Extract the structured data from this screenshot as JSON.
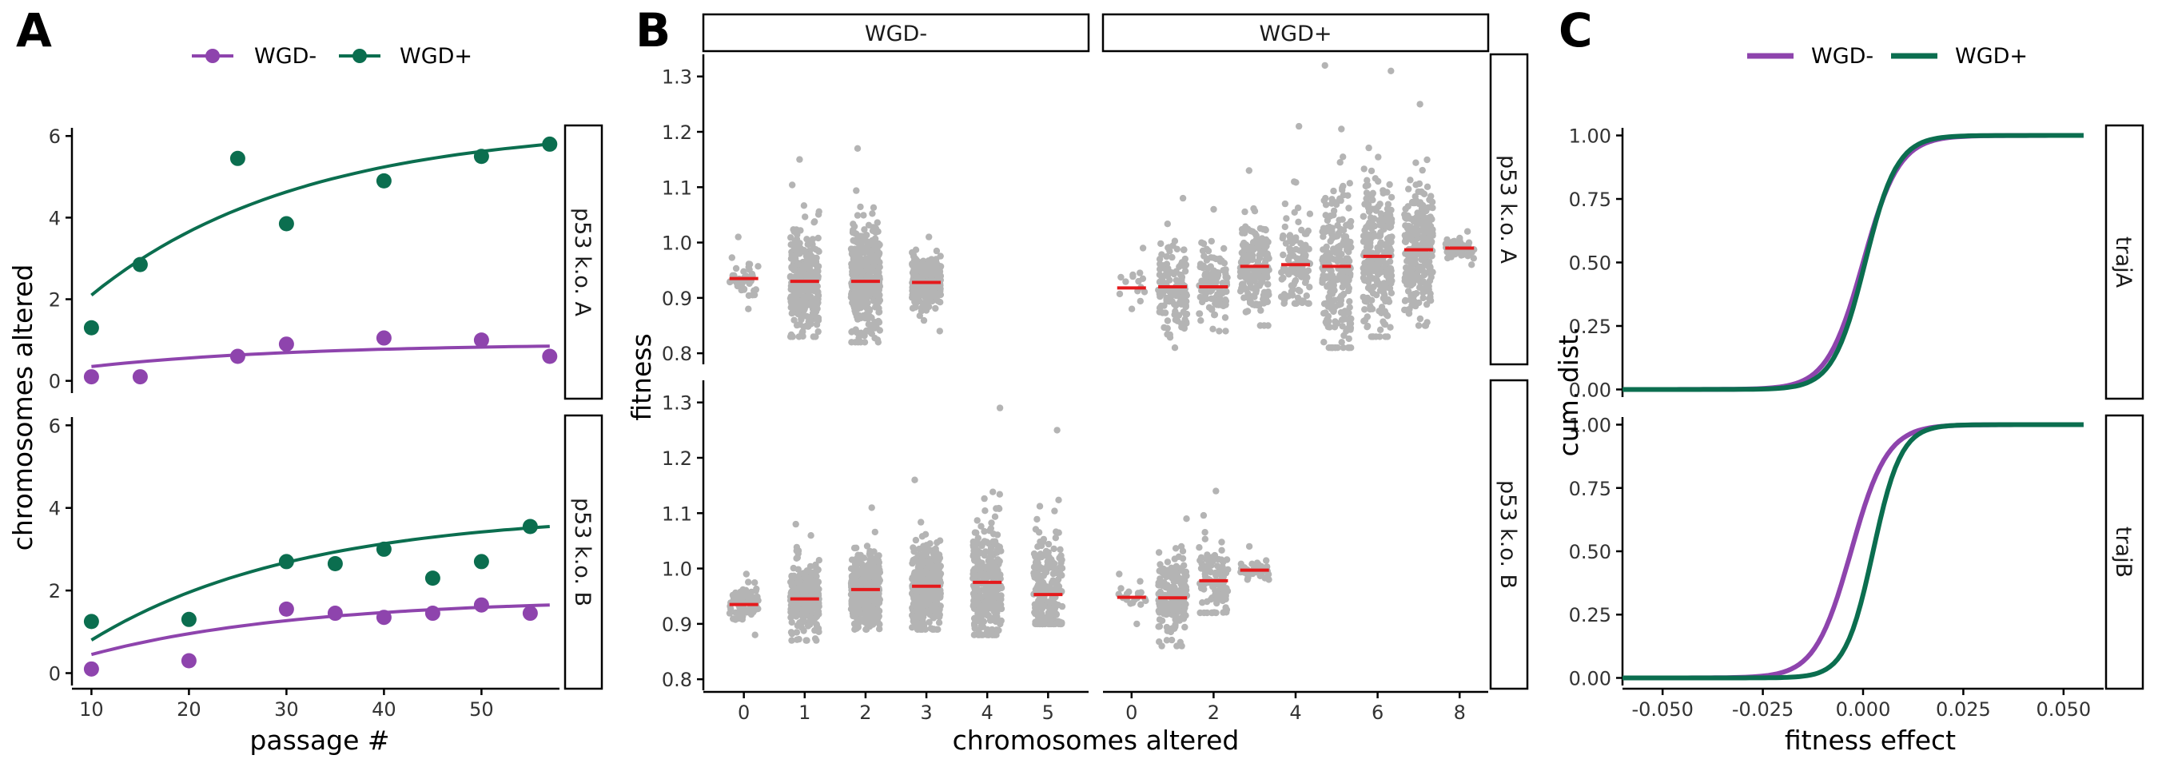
{
  "colors": {
    "wgd_minus": "#8E44AD",
    "wgd_plus": "#0B6E4F",
    "jitter": "#B4B4B4",
    "median": "#E41A1C",
    "axis": "#000000",
    "text": "#333333"
  },
  "chart_data": [
    {
      "panel": "A",
      "type": "scatter",
      "legend": {
        "placement": "top",
        "entries": [
          "WGD-",
          "WGD+"
        ]
      },
      "xlabel": "passage #",
      "ylabel": "chromosomes altered",
      "x_ticks": [
        "10",
        "20",
        "30",
        "40",
        "50"
      ],
      "y_ticks": [
        "0",
        "2",
        "4",
        "6"
      ],
      "xlim": [
        8,
        58
      ],
      "ylim": [
        -0.3,
        6.2
      ],
      "facets": [
        {
          "strip": "p53 k.o. A",
          "series": [
            {
              "name": "WGD-",
              "x": [
                10,
                15,
                25,
                30,
                40,
                50,
                57
              ],
              "y": [
                0.1,
                0.1,
                0.6,
                0.9,
                1.05,
                1.0,
                0.6
              ],
              "fit": [
                0.35,
                0.85
              ]
            },
            {
              "name": "WGD+",
              "x": [
                10,
                15,
                25,
                30,
                40,
                50,
                57
              ],
              "y": [
                1.3,
                2.85,
                5.45,
                3.85,
                4.9,
                5.5,
                5.8
              ],
              "fit": [
                2.1,
                5.8
              ]
            }
          ]
        },
        {
          "strip": "p53 k.o. B",
          "series": [
            {
              "name": "WGD-",
              "x": [
                10,
                20,
                30,
                35,
                40,
                45,
                50,
                55
              ],
              "y": [
                0.1,
                0.3,
                1.55,
                1.45,
                1.35,
                1.45,
                1.65,
                1.45
              ],
              "fit": [
                0.45,
                1.65
              ]
            },
            {
              "name": "WGD+",
              "x": [
                10,
                20,
                30,
                35,
                40,
                45,
                50,
                55
              ],
              "y": [
                1.25,
                1.3,
                2.7,
                2.65,
                3.0,
                2.3,
                2.7,
                3.55
              ],
              "fit": [
                0.8,
                3.55
              ]
            }
          ]
        }
      ]
    },
    {
      "panel": "B",
      "type": "scatter",
      "xlabel": "chromosomes altered",
      "ylabel": "fitness",
      "y_ticks": [
        "0.8",
        "0.9",
        "1.0",
        "1.1",
        "1.2",
        "1.3"
      ],
      "ylim": [
        0.78,
        1.34
      ],
      "columns": [
        {
          "strip": "WGD-",
          "x_ticks": [
            "0",
            "1",
            "2",
            "3",
            "4",
            "5"
          ],
          "xlim": [
            -0.6,
            5.6
          ]
        },
        {
          "strip": "WGD+",
          "x_ticks": [
            "0",
            "2",
            "4",
            "6",
            "8"
          ],
          "xlim": [
            -0.6,
            8.6
          ]
        }
      ],
      "rows": [
        "p53 k.o. A",
        "p53 k.o. B"
      ],
      "groups": [
        {
          "row": 0,
          "col": 0,
          "x": 0,
          "median": 0.935,
          "lo": 0.88,
          "hi": 1.01,
          "n": 40
        },
        {
          "row": 0,
          "col": 0,
          "x": 1,
          "median": 0.93,
          "lo": 0.83,
          "hi": 1.15,
          "n": 320
        },
        {
          "row": 0,
          "col": 0,
          "x": 2,
          "median": 0.93,
          "lo": 0.82,
          "hi": 1.17,
          "n": 420
        },
        {
          "row": 0,
          "col": 0,
          "x": 3,
          "median": 0.928,
          "lo": 0.84,
          "hi": 1.01,
          "n": 260
        },
        {
          "row": 0,
          "col": 1,
          "x": 0,
          "median": 0.918,
          "lo": 0.88,
          "hi": 0.99,
          "n": 14
        },
        {
          "row": 0,
          "col": 1,
          "x": 1,
          "median": 0.92,
          "lo": 0.81,
          "hi": 1.08,
          "n": 150
        },
        {
          "row": 0,
          "col": 1,
          "x": 2,
          "median": 0.92,
          "lo": 0.84,
          "hi": 1.06,
          "n": 120
        },
        {
          "row": 0,
          "col": 1,
          "x": 3,
          "median": 0.957,
          "lo": 0.85,
          "hi": 1.13,
          "n": 180
        },
        {
          "row": 0,
          "col": 1,
          "x": 4,
          "median": 0.96,
          "lo": 0.89,
          "hi": 1.21,
          "n": 120
        },
        {
          "row": 0,
          "col": 1,
          "x": 5,
          "median": 0.957,
          "lo": 0.81,
          "hi": 1.32,
          "n": 240
        },
        {
          "row": 0,
          "col": 1,
          "x": 6,
          "median": 0.975,
          "lo": 0.83,
          "hi": 1.31,
          "n": 260
        },
        {
          "row": 0,
          "col": 1,
          "x": 7,
          "median": 0.987,
          "lo": 0.85,
          "hi": 1.25,
          "n": 260
        },
        {
          "row": 0,
          "col": 1,
          "x": 8,
          "median": 0.99,
          "lo": 0.96,
          "hi": 1.02,
          "n": 60
        },
        {
          "row": 1,
          "col": 0,
          "x": 0,
          "median": 0.935,
          "lo": 0.88,
          "hi": 0.99,
          "n": 90
        },
        {
          "row": 1,
          "col": 0,
          "x": 1,
          "median": 0.945,
          "lo": 0.87,
          "hi": 1.08,
          "n": 320
        },
        {
          "row": 1,
          "col": 0,
          "x": 2,
          "median": 0.962,
          "lo": 0.89,
          "hi": 1.11,
          "n": 420
        },
        {
          "row": 1,
          "col": 0,
          "x": 3,
          "median": 0.968,
          "lo": 0.89,
          "hi": 1.16,
          "n": 380
        },
        {
          "row": 1,
          "col": 0,
          "x": 4,
          "median": 0.975,
          "lo": 0.88,
          "hi": 1.29,
          "n": 300
        },
        {
          "row": 1,
          "col": 0,
          "x": 5,
          "median": 0.953,
          "lo": 0.9,
          "hi": 1.25,
          "n": 240
        },
        {
          "row": 1,
          "col": 1,
          "x": 0,
          "median": 0.948,
          "lo": 0.9,
          "hi": 0.99,
          "n": 20
        },
        {
          "row": 1,
          "col": 1,
          "x": 1,
          "median": 0.947,
          "lo": 0.86,
          "hi": 1.09,
          "n": 200
        },
        {
          "row": 1,
          "col": 1,
          "x": 2,
          "median": 0.978,
          "lo": 0.92,
          "hi": 1.14,
          "n": 110
        },
        {
          "row": 1,
          "col": 1,
          "x": 3,
          "median": 0.997,
          "lo": 0.98,
          "hi": 1.04,
          "n": 40
        }
      ]
    },
    {
      "panel": "C",
      "type": "line",
      "legend": {
        "placement": "top",
        "entries": [
          "WGD-",
          "WGD+"
        ]
      },
      "xlabel": "fitness effect",
      "ylabel": "cum. dist.",
      "x_ticks": [
        "-0.050",
        "-0.025",
        "0.000",
        "0.025",
        "0.050"
      ],
      "y_ticks": [
        "0.00",
        "0.25",
        "0.50",
        "0.75",
        "1.00"
      ],
      "xlim": [
        -0.06,
        0.06
      ],
      "ylim": [
        -0.03,
        1.03
      ],
      "facets": [
        {
          "strip": "trajA",
          "series": [
            {
              "name": "WGD-",
              "center": 0.0,
              "scale": 0.0045
            },
            {
              "name": "WGD+",
              "center": 0.0005,
              "scale": 0.004
            }
          ]
        },
        {
          "strip": "trajB",
          "series": [
            {
              "name": "WGD-",
              "center": -0.003,
              "scale": 0.0045
            },
            {
              "name": "WGD+",
              "center": 0.0025,
              "scale": 0.0035
            }
          ]
        }
      ]
    }
  ]
}
